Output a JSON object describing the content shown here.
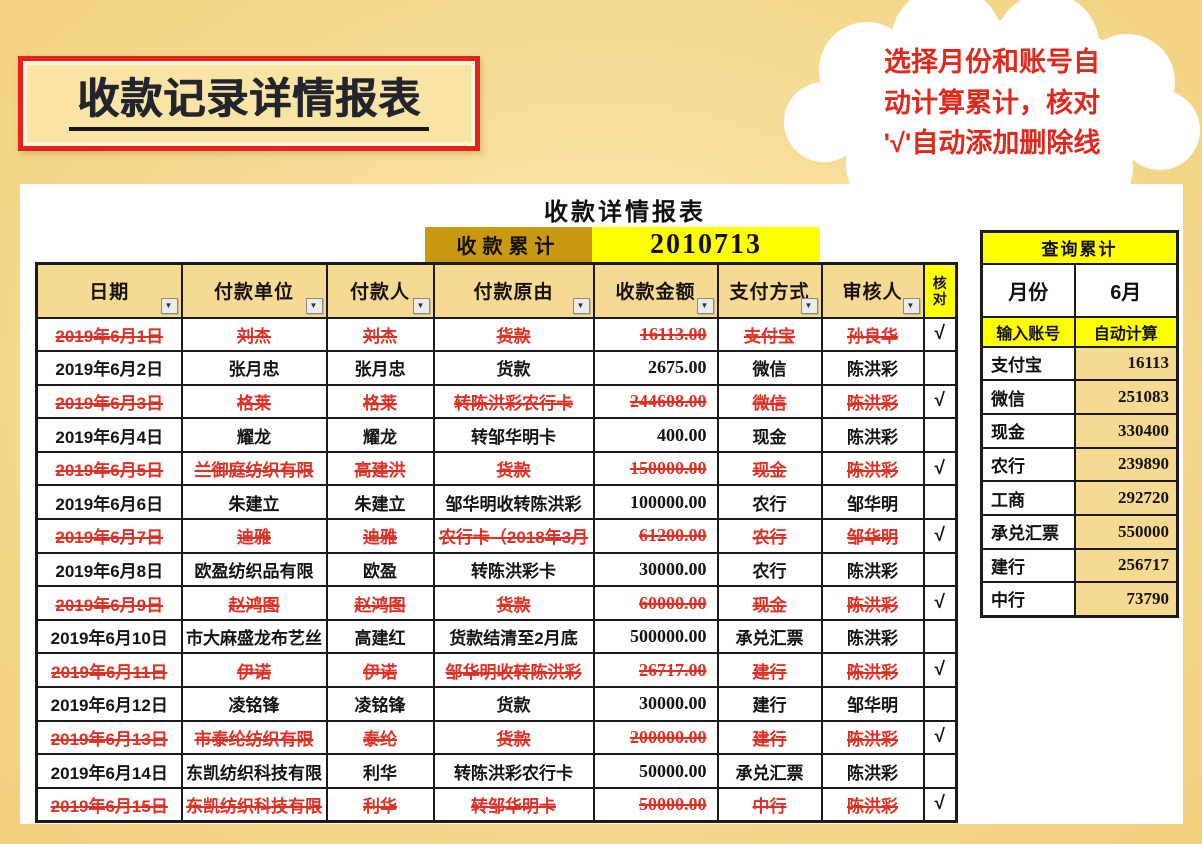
{
  "page": {
    "main_title": "收款记录详情报表",
    "callout": {
      "line1": "选择月份和账号自",
      "line2": "动计算累计，核对",
      "line3": "'√'自动添加删除线"
    }
  },
  "report": {
    "title": "收款详情报表",
    "cumulative_label": "收款累计",
    "cumulative_value": "2010713",
    "check_symbol": "√",
    "columns": [
      {
        "key": "date",
        "label": "日期"
      },
      {
        "key": "unit",
        "label": "付款单位"
      },
      {
        "key": "payer",
        "label": "付款人"
      },
      {
        "key": "reason",
        "label": "付款原由"
      },
      {
        "key": "amount",
        "label": "收款金额"
      },
      {
        "key": "method",
        "label": "支付方式"
      },
      {
        "key": "reviewer",
        "label": "审核人"
      },
      {
        "key": "check",
        "label": "核对"
      }
    ],
    "rows": [
      {
        "date": "2019年6月1日",
        "unit": "刘杰",
        "payer": "刘杰",
        "reason": "货款",
        "amount": "16113.00",
        "method": "支付宝",
        "reviewer": "孙良华",
        "checked": true,
        "struck": true
      },
      {
        "date": "2019年6月2日",
        "unit": "张月忠",
        "payer": "张月忠",
        "reason": "货款",
        "amount": "2675.00",
        "method": "微信",
        "reviewer": "陈洪彩",
        "checked": false,
        "struck": false
      },
      {
        "date": "2019年6月3日",
        "unit": "格莱",
        "payer": "格莱",
        "reason": "转陈洪彩农行卡",
        "amount": "244608.00",
        "method": "微信",
        "reviewer": "陈洪彩",
        "checked": true,
        "struck": true
      },
      {
        "date": "2019年6月4日",
        "unit": "耀龙",
        "payer": "耀龙",
        "reason": "转邹华明卡",
        "amount": "400.00",
        "method": "现金",
        "reviewer": "陈洪彩",
        "checked": false,
        "struck": false
      },
      {
        "date": "2019年6月5日",
        "unit": "兰御庭纺织有限",
        "payer": "高建洪",
        "reason": "货款",
        "amount": "150000.00",
        "method": "现金",
        "reviewer": "陈洪彩",
        "checked": true,
        "struck": true
      },
      {
        "date": "2019年6月6日",
        "unit": "朱建立",
        "payer": "朱建立",
        "reason": "邹华明收转陈洪彩",
        "amount": "100000.00",
        "method": "农行",
        "reviewer": "邹华明",
        "checked": false,
        "struck": false
      },
      {
        "date": "2019年6月7日",
        "unit": "迪雅",
        "payer": "迪雅",
        "reason": "农行卡（2018年3月",
        "amount": "61200.00",
        "method": "农行",
        "reviewer": "邹华明",
        "checked": true,
        "struck": true
      },
      {
        "date": "2019年6月8日",
        "unit": "欧盈纺织品有限",
        "payer": "欧盈",
        "reason": "转陈洪彩卡",
        "amount": "30000.00",
        "method": "农行",
        "reviewer": "陈洪彩",
        "checked": false,
        "struck": false
      },
      {
        "date": "2019年6月9日",
        "unit": "赵鸿图",
        "payer": "赵鸿图",
        "reason": "货款",
        "amount": "60000.00",
        "method": "现金",
        "reviewer": "陈洪彩",
        "checked": true,
        "struck": true
      },
      {
        "date": "2019年6月10日",
        "unit": "市大麻盛龙布艺丝",
        "payer": "高建红",
        "reason": "货款结清至2月底",
        "amount": "500000.00",
        "method": "承兑汇票",
        "reviewer": "陈洪彩",
        "checked": false,
        "struck": false
      },
      {
        "date": "2019年6月11日",
        "unit": "伊诺",
        "payer": "伊诺",
        "reason": "邹华明收转陈洪彩",
        "amount": "26717.00",
        "method": "建行",
        "reviewer": "陈洪彩",
        "checked": true,
        "struck": true
      },
      {
        "date": "2019年6月12日",
        "unit": "凌铭锋",
        "payer": "凌铭锋",
        "reason": "货款",
        "amount": "30000.00",
        "method": "建行",
        "reviewer": "邹华明",
        "checked": false,
        "struck": false
      },
      {
        "date": "2019年6月13日",
        "unit": "市泰纶纺织有限",
        "payer": "泰纶",
        "reason": "货款",
        "amount": "200000.00",
        "method": "建行",
        "reviewer": "陈洪彩",
        "checked": true,
        "struck": true
      },
      {
        "date": "2019年6月14日",
        "unit": "东凯纺织科技有限",
        "payer": "利华",
        "reason": "转陈洪彩农行卡",
        "amount": "50000.00",
        "method": "承兑汇票",
        "reviewer": "陈洪彩",
        "checked": false,
        "struck": false
      },
      {
        "date": "2019年6月15日",
        "unit": "东凯纺织科技有限",
        "payer": "利华",
        "reason": "转邹华明卡",
        "amount": "50000.00",
        "method": "中行",
        "reviewer": "陈洪彩",
        "checked": true,
        "struck": true
      }
    ]
  },
  "query_panel": {
    "title": "查询累计",
    "month_label": "月份",
    "month_value": "6月",
    "account_header": "输入账号",
    "calc_header": "自动计算",
    "accounts": [
      {
        "name": "支付宝",
        "value": "16113"
      },
      {
        "name": "微信",
        "value": "251083"
      },
      {
        "name": "现金",
        "value": "330400"
      },
      {
        "name": "农行",
        "value": "239890"
      },
      {
        "name": "工商",
        "value": "292720"
      },
      {
        "name": "承兑汇票",
        "value": "550000"
      },
      {
        "name": "建行",
        "value": "256717"
      },
      {
        "name": "中行",
        "value": "73790"
      }
    ]
  },
  "colors": {
    "page_background": "#F6DA92",
    "accent_red": "#E2241B",
    "callout_text_red": "#E0291D",
    "struck_red": "#DE3126",
    "header_tan": "#F6D993",
    "dark_gold": "#C8990E",
    "highlight_yellow": "#FFFF00"
  }
}
